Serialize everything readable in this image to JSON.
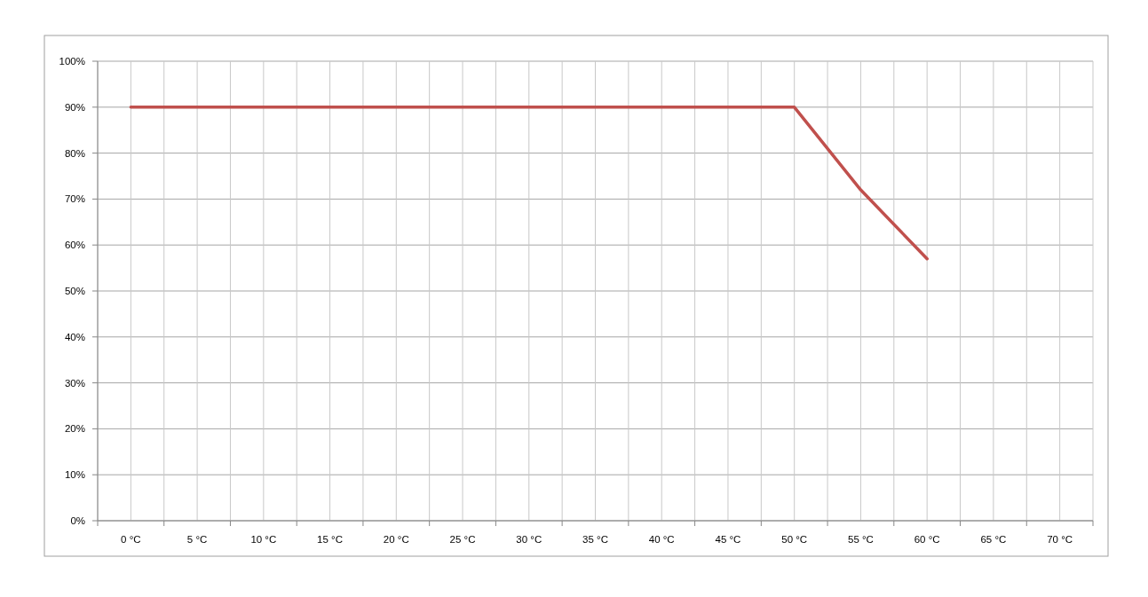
{
  "chart_data": {
    "type": "line",
    "categories": [
      "0 °C",
      "5 °C",
      "10 °C",
      "15 °C",
      "20 °C",
      "25 °C",
      "30 °C",
      "35 °C",
      "40 °C",
      "45 °C",
      "50 °C",
      "55 °C",
      "60 °C",
      "65 °C",
      "70 °C"
    ],
    "series": [
      {
        "color": "#c0504d",
        "values": [
          90,
          90,
          90,
          90,
          90,
          90,
          90,
          90,
          90,
          90,
          90,
          72,
          57,
          null,
          null
        ]
      }
    ],
    "ylim": [
      0,
      100
    ],
    "yticks": [
      {
        "value": 0,
        "label": "0%"
      },
      {
        "value": 10,
        "label": "10%"
      },
      {
        "value": 20,
        "label": "20%"
      },
      {
        "value": 30,
        "label": "30%"
      },
      {
        "value": 40,
        "label": "40%"
      },
      {
        "value": 50,
        "label": "50%"
      },
      {
        "value": 60,
        "label": "60%"
      },
      {
        "value": 70,
        "label": "70%"
      },
      {
        "value": 80,
        "label": "80%"
      },
      {
        "value": 90,
        "label": "90%"
      },
      {
        "value": 100,
        "label": "100%"
      }
    ],
    "grid": true,
    "marker": "none",
    "line_style": "solid"
  }
}
